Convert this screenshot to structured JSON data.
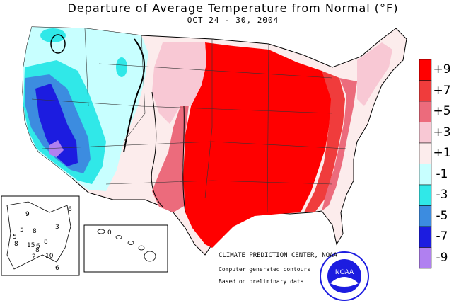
{
  "title": "Departure of Average Temperature from Normal (°F)",
  "subtitle": "OCT 24 - 30, 2004",
  "credit_center": "CLIMATE PREDICTION CENTER, NOAA",
  "credit_contours": "Computer generated contours",
  "credit_data": "Based on preliminary data",
  "logo_text": "NOAA",
  "legend": [
    {
      "label": "+9",
      "color": "#ff0000"
    },
    {
      "label": "+7",
      "color": "#f03c3c"
    },
    {
      "label": "+5",
      "color": "#ec6b7c"
    },
    {
      "label": "+3",
      "color": "#f8c8d4"
    },
    {
      "label": "+1",
      "color": "#fcecec"
    },
    {
      "label": "-1",
      "color": "#c8ffff"
    },
    {
      "label": "-3",
      "color": "#30e8e8"
    },
    {
      "label": "-5",
      "color": "#3c8ce0"
    },
    {
      "label": "-7",
      "color": "#1c1ce0"
    },
    {
      "label": "-9",
      "color": "#b080f0"
    }
  ],
  "alaska_labels": [
    "9",
    "5",
    "3",
    "6",
    "8",
    "5",
    "8",
    "15",
    "6",
    "8",
    "8",
    "2",
    "10",
    "6"
  ],
  "hawaii_label": "0"
}
